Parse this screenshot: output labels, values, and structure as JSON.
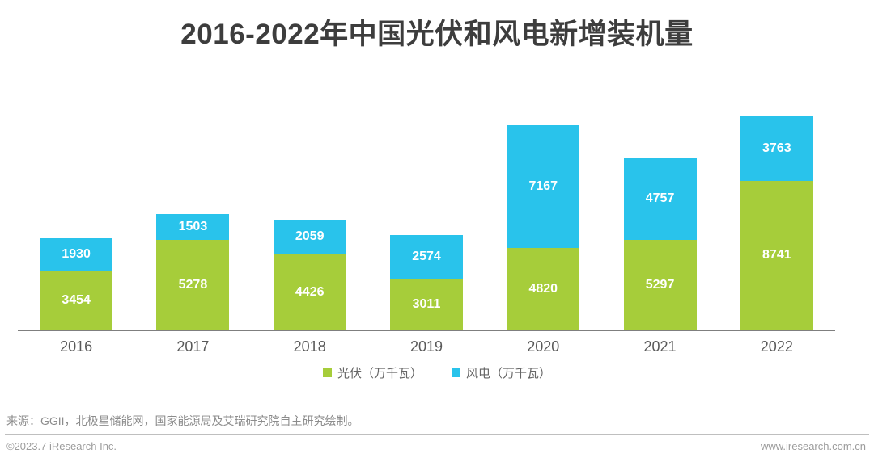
{
  "title": "2016-2022年中国光伏和风电新增装机量",
  "chart_data": {
    "type": "bar",
    "stacked": true,
    "title": "2016-2022年中国光伏和风电新增装机量",
    "categories": [
      "2016",
      "2017",
      "2018",
      "2019",
      "2020",
      "2021",
      "2022"
    ],
    "series": [
      {
        "name": "光伏（万千瓦）",
        "color": "#a6cd3a",
        "values": [
          3454,
          5278,
          4426,
          3011,
          4820,
          5297,
          8741
        ]
      },
      {
        "name": "风电（万千瓦）",
        "color": "#29c3eb",
        "values": [
          1930,
          1503,
          2059,
          2574,
          7167,
          4757,
          3763
        ]
      }
    ],
    "totals": [
      5384,
      6781,
      6485,
      5585,
      11987,
      10054,
      12504
    ],
    "xlabel": "",
    "ylabel": "",
    "ylim": [
      0,
      12504
    ],
    "grid": false,
    "legend_position": "bottom",
    "value_labels": "inside-segments-white",
    "axis_line_color": "#7f7f7f",
    "label_color": "#595959"
  },
  "source_note": "来源：GGII，北极星储能网，国家能源局及艾瑞研究院自主研究绘制。",
  "footer": {
    "left": "©2023.7 iResearch Inc.",
    "right": "www.iresearch.com.cn"
  }
}
